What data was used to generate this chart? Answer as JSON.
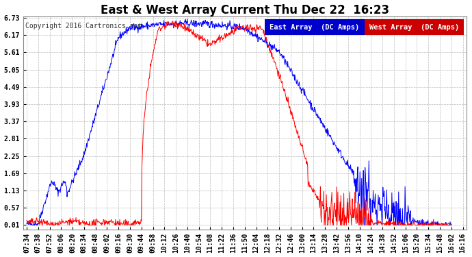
{
  "title": "East & West Array Current Thu Dec 22  16:23",
  "copyright": "Copyright 2016 Cartronics.com",
  "legend_east": "East Array  (DC Amps)",
  "legend_west": "West Array  (DC Amps)",
  "east_color": "#0000FF",
  "west_color": "#FF0000",
  "legend_east_bg": "#0000CC",
  "legend_west_bg": "#CC0000",
  "bg_color": "#FFFFFF",
  "plot_bg_color": "#FFFFFF",
  "grid_color": "#AAAAAA",
  "title_color": "#000000",
  "tick_color": "#000000",
  "ylim": [
    0.01,
    6.73
  ],
  "yticks": [
    0.01,
    0.57,
    1.13,
    1.69,
    2.25,
    2.81,
    3.37,
    3.93,
    4.49,
    5.05,
    5.61,
    6.17,
    6.73
  ],
  "xtick_labels": [
    "07:34",
    "07:38",
    "07:52",
    "08:06",
    "08:20",
    "08:34",
    "08:48",
    "09:02",
    "09:16",
    "09:30",
    "09:44",
    "09:58",
    "10:12",
    "10:26",
    "10:40",
    "10:54",
    "11:08",
    "11:22",
    "11:36",
    "11:50",
    "12:04",
    "12:18",
    "12:32",
    "12:46",
    "13:00",
    "13:14",
    "13:28",
    "13:42",
    "13:56",
    "14:10",
    "14:24",
    "14:38",
    "14:52",
    "15:06",
    "15:20",
    "15:34",
    "15:48",
    "16:02",
    "16:16"
  ],
  "title_fontsize": 12,
  "copyright_fontsize": 7,
  "tick_fontsize": 7,
  "legend_fontsize": 7.5
}
